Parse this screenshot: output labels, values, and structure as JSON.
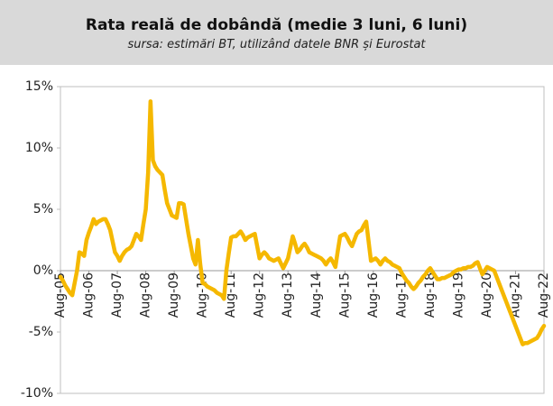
{
  "chart_data": {
    "type": "line",
    "title": "Rata reală de dobândă (medie 3 luni, 6 luni)",
    "subtitle": "sursa: estimări BT, utilizând datele BNR și Eurostat",
    "categories": [
      "Aug-05",
      null,
      null,
      null,
      null,
      null,
      null,
      null,
      null,
      null,
      null,
      null,
      "Aug-06",
      null,
      null,
      null,
      null,
      null,
      null,
      null,
      null,
      null,
      null,
      null,
      "Aug-07",
      null,
      null,
      null,
      null,
      null,
      null,
      null,
      null,
      null,
      null,
      null,
      "Aug-08",
      null,
      null,
      null,
      null,
      null,
      null,
      null,
      null,
      null,
      null,
      null,
      "Aug-09",
      null,
      null,
      null,
      null,
      null,
      null,
      null,
      null,
      null,
      null,
      null,
      "Aug-10",
      null,
      null,
      null,
      null,
      null,
      null,
      null,
      null,
      null,
      null,
      null,
      "Aug-11",
      null,
      null,
      null,
      null,
      null,
      null,
      null,
      null,
      null,
      null,
      null,
      "Aug-12",
      null,
      null,
      null,
      null,
      null,
      null,
      null,
      null,
      null,
      null,
      null,
      "Aug-13",
      null,
      null,
      null,
      null,
      null,
      null,
      null,
      null,
      null,
      null,
      null,
      "Aug-14",
      null,
      null,
      null,
      null,
      null,
      null,
      null,
      null,
      null,
      null,
      null,
      "Aug-15",
      null,
      null,
      null,
      null,
      null,
      null,
      null,
      null,
      null,
      null,
      null,
      "Aug-16",
      null,
      null,
      null,
      null,
      null,
      null,
      null,
      null,
      null,
      null,
      null,
      "Aug-17",
      null,
      null,
      null,
      null,
      null,
      null,
      null,
      null,
      null,
      null,
      null,
      "Aug-18",
      null,
      null,
      null,
      null,
      null,
      null,
      null,
      null,
      null,
      null,
      null,
      "Aug-19",
      null,
      null,
      null,
      null,
      null,
      null,
      null,
      null,
      null,
      null,
      null,
      "Aug-20",
      null,
      null,
      null,
      null,
      null,
      null,
      null,
      null,
      null,
      null,
      null,
      "Aug-21",
      null,
      null,
      null,
      null,
      null,
      null,
      null,
      null,
      null,
      null,
      null,
      "Aug-22"
    ],
    "series": [
      {
        "color": "#f5b800",
        "values": [
          -0.5,
          -0.8,
          -1.2,
          -1.5,
          -1.8,
          -2,
          -1,
          0,
          1.5,
          1.4,
          1.2,
          2.5,
          3.1,
          3.6,
          4.2,
          3.8,
          4,
          4.1,
          4.2,
          4.2,
          3.8,
          3.3,
          2.4,
          1.5,
          1.2,
          0.8,
          1.2,
          1.5,
          1.7,
          1.8,
          2,
          2.5,
          3,
          2.8,
          2.5,
          3.8,
          5,
          8,
          13.8,
          9,
          8.5,
          8.2,
          8,
          7.8,
          6.6,
          5.5,
          5,
          4.5,
          4.4,
          4.3,
          5.5,
          5.5,
          5.4,
          4.2,
          3,
          2,
          1,
          0.5,
          2.5,
          0.5,
          -1,
          -1.1,
          -1.3,
          -1.4,
          -1.5,
          -1.6,
          -1.8,
          -1.9,
          -2,
          -2.3,
          0,
          1.4,
          2.7,
          2.8,
          2.8,
          3,
          3.2,
          2.9,
          2.5,
          2.7,
          2.8,
          2.9,
          3,
          2,
          1,
          1.3,
          1.5,
          1.3,
          1,
          0.9,
          0.8,
          0.9,
          1,
          0.6,
          0.2,
          0.6,
          1,
          1.9,
          2.8,
          2.2,
          1.5,
          1.7,
          2,
          2.2,
          1.9,
          1.5,
          1.4,
          1.3,
          1.2,
          1.1,
          1,
          0.8,
          0.5,
          0.8,
          1,
          0.7,
          0.3,
          1.6,
          2.8,
          2.9,
          3,
          2.7,
          2.3,
          2,
          2.5,
          3,
          3.2,
          3.3,
          3.7,
          4,
          2.4,
          0.8,
          0.9,
          1,
          0.8,
          0.5,
          0.8,
          1,
          0.8,
          0.7,
          0.5,
          0.4,
          0.3,
          0.2,
          -0.2,
          -0.5,
          -0.8,
          -1,
          -1.3,
          -1.5,
          -1.3,
          -1,
          -0.8,
          -0.5,
          -0.3,
          0,
          0.2,
          -0.1,
          -0.4,
          -0.7,
          -0.7,
          -0.6,
          -0.6,
          -0.5,
          -0.4,
          -0.3,
          -0.1,
          0,
          0.1,
          0.1,
          0.2,
          0.2,
          0.3,
          0.3,
          0.4,
          0.6,
          0.7,
          0.2,
          -0.3,
          0,
          0.3,
          0.2,
          0.1,
          0,
          -0.5,
          -1,
          -1.5,
          -2,
          -2.5,
          -3,
          -3.5,
          -4,
          -4.5,
          -5,
          -5.5,
          -6,
          -5.9,
          -5.9,
          -5.8,
          -5.7,
          -5.6,
          -5.5,
          -5.2,
          -4.8,
          -4.5
        ]
      }
    ],
    "ylim": [
      -10,
      15
    ],
    "yticks": [
      {
        "value": -10,
        "label": "-10%"
      },
      {
        "value": -5,
        "label": "-5%"
      },
      {
        "value": 0,
        "label": "0%"
      },
      {
        "value": 5,
        "label": "5%"
      },
      {
        "value": 10,
        "label": "10%"
      },
      {
        "value": 15,
        "label": "15%"
      }
    ],
    "grid": false
  }
}
